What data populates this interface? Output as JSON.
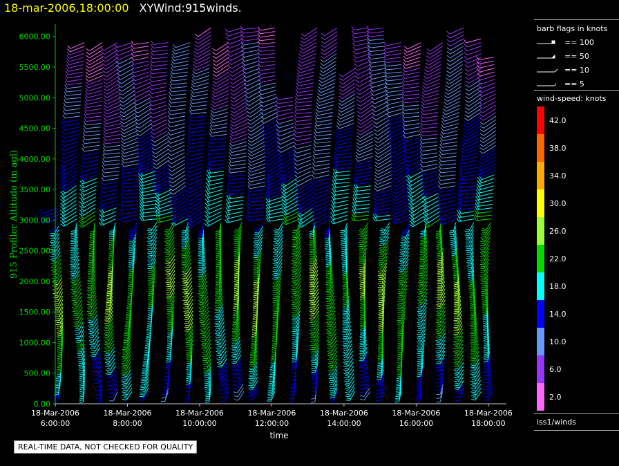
{
  "header": {
    "date": "18-mar-2006,18:00:00",
    "name": "XYWind:915winds."
  },
  "note": "REAL-TIME DATA, NOT CHECKED FOR QUALITY",
  "legend": {
    "barb_title": "barb flags in knots",
    "barbs": [
      "== 100",
      "== 50",
      "== 10",
      "== 5"
    ],
    "speed_title": "wind-speed: knots",
    "scale": [
      {
        "label": "42.0",
        "color": "#ff0000"
      },
      {
        "label": "38.0",
        "color": "#ff6600"
      },
      {
        "label": "34.0",
        "color": "#ffaa00"
      },
      {
        "label": "30.0",
        "color": "#ffff00"
      },
      {
        "label": "26.0",
        "color": "#99ff33"
      },
      {
        "label": "22.0",
        "color": "#00dd00"
      },
      {
        "label": "18.0",
        "color": "#00ffff"
      },
      {
        "label": "14.0",
        "color": "#0000ff"
      },
      {
        "label": "10.0",
        "color": "#6699ff"
      },
      {
        "label": "6.0",
        "color": "#9933ff"
      },
      {
        "label": "2.0",
        "color": "#ff66ff"
      }
    ],
    "source": "iss1/winds"
  },
  "chart_data": {
    "type": "wind-barb time-height",
    "xlabel": "time",
    "ylabel": "915 Profiler Altitude (m agl)",
    "x_range": [
      "2006-03-18T06:00",
      "2006-03-18T18:30"
    ],
    "ylim": [
      0,
      6200
    ],
    "yticks": [
      "0.00",
      "500.00",
      "1000.00",
      "1500.00",
      "2000.00",
      "2500.00",
      "3000.00",
      "3500.00",
      "4000.00",
      "4500.00",
      "5000.00",
      "5500.00",
      "6000.00"
    ],
    "xticks": [
      {
        "date": "18-Mar-2006",
        "time": "6:00:00"
      },
      {
        "date": "18-Mar-2006",
        "time": "8:00:00"
      },
      {
        "date": "18-Mar-2006",
        "time": "10:00:00"
      },
      {
        "date": "18-Mar-2006",
        "time": "12:00:00"
      },
      {
        "date": "18-Mar-2006",
        "time": "14:00:00"
      },
      {
        "date": "18-Mar-2006",
        "time": "16:00:00"
      },
      {
        "date": "18-Mar-2006",
        "time": "18:00:00"
      }
    ],
    "profile_hours": [
      6.1,
      6.7,
      7.2,
      7.7,
      8.2,
      8.7,
      9.2,
      9.7,
      10.2,
      10.7,
      11.2,
      11.7,
      12.2,
      12.7,
      13.2,
      13.7,
      14.2,
      14.7,
      15.2,
      15.7,
      16.2,
      16.7,
      17.2,
      17.7,
      18.1
    ],
    "profile_top_m": [
      3200,
      5950,
      5950,
      5900,
      5900,
      5900,
      5900,
      5950,
      6150,
      5900,
      6150,
      6150,
      6150,
      5000,
      6150,
      6150,
      5500,
      6150,
      6150,
      5900,
      5950,
      5950,
      6150,
      6000,
      5700
    ],
    "speed_stops_knots": [
      {
        "alt": 200,
        "spd": 14
      },
      {
        "alt": 1000,
        "spd": 20
      },
      {
        "alt": 2000,
        "spd": 24
      },
      {
        "alt": 3000,
        "spd": 18
      },
      {
        "alt": 4000,
        "spd": 12
      },
      {
        "alt": 5000,
        "spd": 8
      },
      {
        "alt": 6000,
        "spd": 5
      }
    ]
  }
}
